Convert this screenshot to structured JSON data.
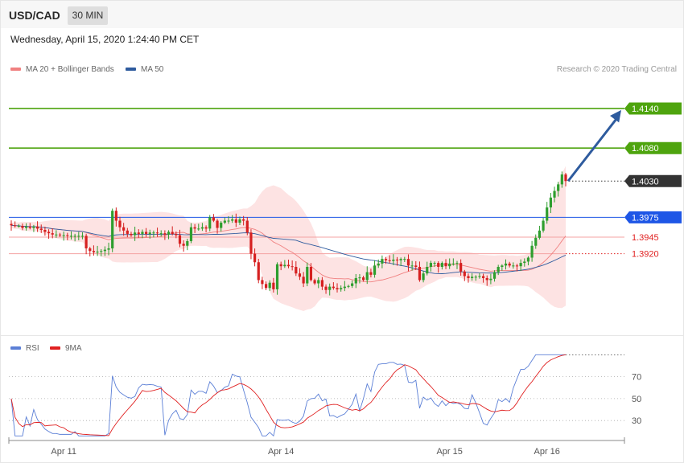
{
  "header": {
    "symbol": "USD/CAD",
    "timeframe": "30 MIN"
  },
  "datetime": "Wednesday, April 15, 2020 1:24:40 PM CET",
  "credit": "Research © 2020 Trading Central",
  "price_legend": [
    {
      "label": "MA 20 + Bollinger Bands",
      "color": "#f08080"
    },
    {
      "label": "MA 50",
      "color": "#2e5b9e"
    }
  ],
  "rsi_legend": [
    {
      "label": "RSI",
      "color": "#5b7fd6"
    },
    {
      "label": "9MA",
      "color": "#e02020"
    }
  ],
  "chart_data": [
    {
      "type": "candlestick",
      "symbol": "USD/CAD",
      "timeframe": "30 MIN",
      "ylim": [
        1.3805,
        1.4185
      ],
      "x_tick_labels": [
        {
          "label": "Apr 11",
          "index": 14
        },
        {
          "label": "Apr 14",
          "index": 72
        },
        {
          "label": "Apr 15",
          "index": 117
        },
        {
          "label": "Apr 16",
          "index": 143
        }
      ],
      "levels": [
        {
          "label": "1.4140",
          "value": 1.414,
          "role": "resistance",
          "color": "#4ea40e"
        },
        {
          "label": "1.4080",
          "value": 1.408,
          "role": "resistance",
          "color": "#4ea40e"
        },
        {
          "label": "1.4030",
          "value": 1.403,
          "role": "last price",
          "color": "#333333"
        },
        {
          "label": "1.3975",
          "value": 1.3975,
          "role": "pivot",
          "color": "#1e56e6"
        },
        {
          "label": "1.3945",
          "value": 1.3945,
          "role": "support",
          "color": "#e02020"
        },
        {
          "label": "1.3920",
          "value": 1.392,
          "role": "support",
          "color": "#e02020"
        }
      ],
      "arrow": {
        "from_value": 1.403,
        "to_value": 1.414,
        "color": "#2e5b9e"
      },
      "ohlc_seed": {
        "closes": [
          1.3963,
          1.3962,
          1.3962,
          1.3959,
          1.3961,
          1.3959,
          1.3961,
          1.3958,
          1.3956,
          1.3953,
          1.3951,
          1.3949,
          1.3949,
          1.3948,
          1.3948,
          1.3947,
          1.3947,
          1.3947,
          1.3947,
          1.3947,
          1.3928,
          1.3924,
          1.3922,
          1.3923,
          1.3924,
          1.3926,
          1.3928,
          1.3985,
          1.397,
          1.396,
          1.3955,
          1.395,
          1.3948,
          1.3952,
          1.395,
          1.3953,
          1.395,
          1.3952,
          1.3952,
          1.3951,
          1.3951,
          1.3949,
          1.3953,
          1.395,
          1.3948,
          1.3935,
          1.3932,
          1.3939,
          1.396,
          1.3958,
          1.3958,
          1.396,
          1.3958,
          1.3975,
          1.397,
          1.3959,
          1.3967,
          1.397,
          1.397,
          1.3972,
          1.3967,
          1.3972,
          1.397,
          1.3952,
          1.392,
          1.3907,
          1.388,
          1.3874,
          1.3868,
          1.3876,
          1.3866,
          1.3904,
          1.3901,
          1.3903,
          1.3901,
          1.39,
          1.389,
          1.3885,
          1.3875,
          1.39,
          1.388,
          1.3875,
          1.388,
          1.387,
          1.3865,
          1.387,
          1.3868,
          1.3866,
          1.3868,
          1.387,
          1.3871,
          1.3875,
          1.3883,
          1.3884,
          1.388,
          1.3892,
          1.3888,
          1.3902,
          1.3905,
          1.3912,
          1.391,
          1.3909,
          1.3911,
          1.391,
          1.3912,
          1.3912,
          1.3902,
          1.3902,
          1.39,
          1.388,
          1.389,
          1.39,
          1.3906,
          1.3906,
          1.39,
          1.3906,
          1.3901,
          1.3905,
          1.3905,
          1.3906,
          1.3893,
          1.3886,
          1.3883,
          1.3885,
          1.3885,
          1.3886,
          1.3883,
          1.388,
          1.3882,
          1.3892,
          1.39,
          1.3902,
          1.3905,
          1.3902,
          1.3902,
          1.3901,
          1.3906,
          1.3908,
          1.3914,
          1.3932,
          1.3944,
          1.3955,
          1.397,
          1.399,
          1.4005,
          1.4015,
          1.4025,
          1.404,
          1.403
        ]
      }
    },
    {
      "type": "line",
      "title": "RSI",
      "ylim": [
        14,
        91
      ],
      "y_ticks": [
        30,
        50,
        70
      ],
      "series": [
        {
          "name": "RSI",
          "color": "#5b7fd6"
        },
        {
          "name": "9MA",
          "color": "#e02020"
        }
      ]
    }
  ]
}
